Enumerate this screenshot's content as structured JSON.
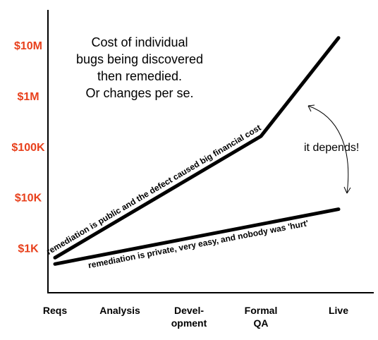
{
  "chart_data": {
    "type": "line",
    "title_lines": [
      "Cost of individual",
      "bugs being discovered",
      "then remedied.",
      "Or changes per se."
    ],
    "categories": [
      {
        "key": "Reqs",
        "lines": [
          "Reqs"
        ]
      },
      {
        "key": "Analysis",
        "lines": [
          "Analysis"
        ]
      },
      {
        "key": "Development",
        "lines": [
          "Devel-",
          "opment"
        ]
      },
      {
        "key": "Formal QA",
        "lines": [
          "Formal",
          "QA"
        ]
      },
      {
        "key": "Live",
        "lines": [
          "Live"
        ]
      }
    ],
    "y_scale": "log",
    "y_ticks": [
      {
        "value": 1000,
        "label": "$1K"
      },
      {
        "value": 10000,
        "label": "$10K"
      },
      {
        "value": 100000,
        "label": "$100K"
      },
      {
        "value": 1000000,
        "label": "$1M"
      },
      {
        "value": 10000000,
        "label": "$10M"
      }
    ],
    "ylim": [
      130,
      50000000
    ],
    "grid": false,
    "series": [
      {
        "label": "remediation is public and the defect caused big financial cost",
        "points": [
          {
            "x": 0,
            "y": 640
          },
          {
            "x": 3,
            "y": 160000
          },
          {
            "x": 4,
            "y": 14000000
          }
        ]
      },
      {
        "label": "remediation is private, very easy, and nobody was 'hurt'",
        "points": [
          {
            "x": 0,
            "y": 480
          },
          {
            "x": 4,
            "y": 5800
          }
        ]
      }
    ],
    "annotation": "it depends!",
    "colors": {
      "tick_labels": "#e8401c",
      "lines": "#000000"
    }
  }
}
